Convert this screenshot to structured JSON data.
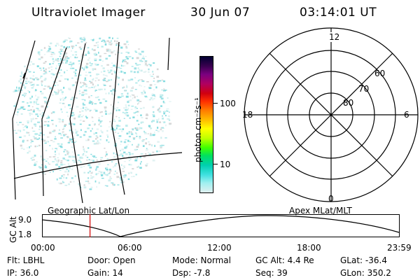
{
  "header": {
    "instrument": "Ultraviolet Imager",
    "date": "30 Jun 07",
    "time": "03:14:01 UT"
  },
  "colorbar": {
    "unit_label": "photon cm⁻²s⁻¹",
    "ticks": [
      "100",
      "10"
    ],
    "colors": [
      "#000030",
      "#3a0050",
      "#7a0080",
      "#b00060",
      "#d00010",
      "#ff3000",
      "#ff8000",
      "#ffc000",
      "#ffff00",
      "#c0ff00",
      "#40ff00",
      "#00e060",
      "#00d0b0",
      "#40e0e0",
      "#a0f0f0",
      "#e0f0f0"
    ]
  },
  "polar_plot": {
    "mlt_labels": {
      "top": "12",
      "left": "18",
      "right": "6",
      "bottom": "0"
    },
    "lat_labels": [
      "60",
      "70",
      "80"
    ]
  },
  "timeline": {
    "left_caption": "Geographic Lat/Lon",
    "right_caption": "Apex MLat/MLT",
    "axis_title": "GC Alt",
    "y_ticks": [
      "9.0",
      "1.8"
    ],
    "x_ticks": [
      "00:00",
      "06:00",
      "12:00",
      "18:00",
      "23:59"
    ],
    "current_marker_hours": 3.23
  },
  "status": {
    "filter": "Flt: LBHL",
    "door": "Door: Open",
    "mode": "Mode: Normal",
    "gc_alt": "GC Alt: 4.4 Re",
    "glat": "GLat: -36.4",
    "ip": "IP: 36.0",
    "gain": "Gain: 14",
    "dsp": "Dsp:   -7.8",
    "seq": "Seq: 39",
    "glon": "GLon: 350.2"
  }
}
